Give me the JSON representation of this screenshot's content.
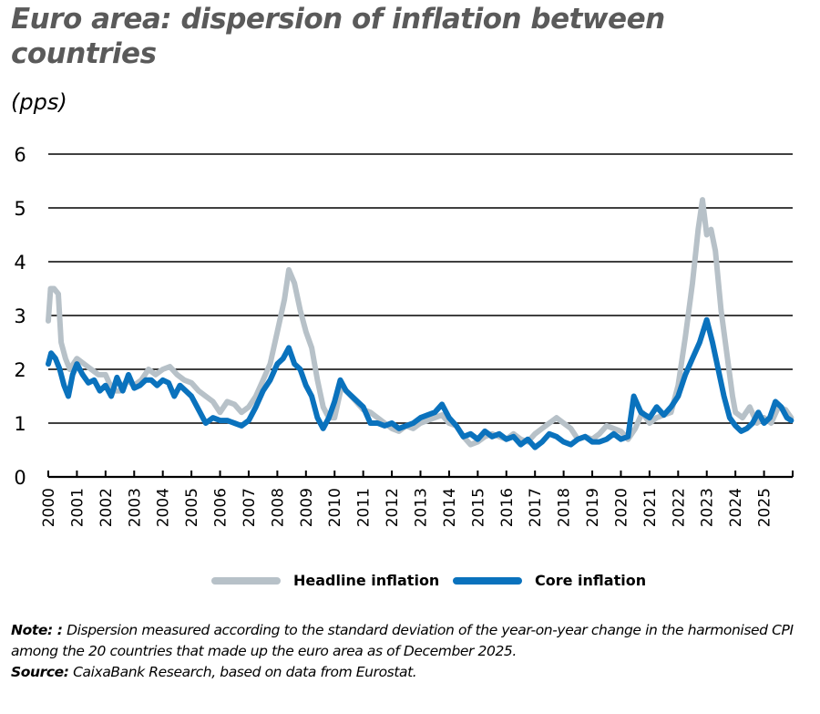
{
  "title": "Euro area: dispersion of inflation between countries",
  "unit": "(pps)",
  "legend": {
    "headline_label": "Headline inflation",
    "core_label": "Core inflation"
  },
  "notes": {
    "note_label": "Note: :",
    "note_text": " Dispersion measured according to the standard deviation of the year-on-year change in the harmonised CPI among the 20 countries that made up the euro area as of December 2025.",
    "source_label": "Source:",
    "source_text": " CaixaBank Research, based on data from Eurostat."
  },
  "colors": {
    "headline": "#b7c1c8",
    "core": "#0a72bd",
    "grid": "#000000",
    "title": "#5a5a5a"
  },
  "chart_data": {
    "type": "line",
    "title": "Euro area: dispersion of inflation between countries",
    "xlabel": "",
    "ylabel": "(pps)",
    "ylim": [
      0,
      6
    ],
    "yticks": [
      0,
      1,
      2,
      3,
      4,
      5,
      6
    ],
    "xlim": [
      2000,
      2026
    ],
    "xticks": [
      "2000",
      "2001",
      "2002",
      "2003",
      "2004",
      "2005",
      "2006",
      "2007",
      "2008",
      "2009",
      "2010",
      "2011",
      "2012",
      "2013",
      "2014",
      "2015",
      "2016",
      "2017",
      "2018",
      "2019",
      "2020",
      "2021",
      "2022",
      "2023",
      "2024",
      "2025"
    ],
    "grid": true,
    "legend_position": "bottom",
    "series": [
      {
        "name": "Headline inflation",
        "x": [
          2000.0,
          2000.08,
          2000.2,
          2000.35,
          2000.45,
          2000.6,
          2000.75,
          2001.0,
          2001.25,
          2001.5,
          2001.75,
          2002.0,
          2002.25,
          2002.5,
          2002.75,
          2003.0,
          2003.25,
          2003.5,
          2003.75,
          2004.0,
          2004.25,
          2004.5,
          2004.75,
          2005.0,
          2005.25,
          2005.5,
          2005.75,
          2006.0,
          2006.25,
          2006.5,
          2006.75,
          2007.0,
          2007.25,
          2007.5,
          2007.75,
          2008.0,
          2008.25,
          2008.4,
          2008.6,
          2008.8,
          2009.0,
          2009.2,
          2009.4,
          2009.6,
          2009.8,
          2010.0,
          2010.25,
          2010.5,
          2010.75,
          2011.0,
          2011.25,
          2011.5,
          2011.75,
          2012.0,
          2012.25,
          2012.5,
          2012.75,
          2013.0,
          2013.25,
          2013.5,
          2013.75,
          2014.0,
          2014.25,
          2014.5,
          2014.75,
          2015.0,
          2015.25,
          2015.5,
          2015.75,
          2016.0,
          2016.25,
          2016.5,
          2016.75,
          2017.0,
          2017.25,
          2017.5,
          2017.75,
          2018.0,
          2018.25,
          2018.5,
          2018.75,
          2019.0,
          2019.25,
          2019.5,
          2019.75,
          2020.0,
          2020.25,
          2020.5,
          2020.75,
          2021.0,
          2021.25,
          2021.5,
          2021.75,
          2022.0,
          2022.25,
          2022.5,
          2022.7,
          2022.85,
          2023.0,
          2023.15,
          2023.3,
          2023.5,
          2023.7,
          2023.9,
          2024.0,
          2024.25,
          2024.5,
          2024.75,
          2025.0,
          2025.25,
          2025.5,
          2025.75,
          2025.95
        ],
        "values": [
          2.9,
          3.5,
          3.5,
          3.4,
          2.5,
          2.2,
          2.0,
          2.2,
          2.1,
          2.0,
          1.9,
          1.9,
          1.6,
          1.6,
          1.8,
          1.7,
          1.8,
          2.0,
          1.9,
          2.0,
          2.05,
          1.9,
          1.8,
          1.75,
          1.6,
          1.5,
          1.4,
          1.2,
          1.4,
          1.35,
          1.2,
          1.3,
          1.5,
          1.8,
          2.1,
          2.7,
          3.3,
          3.85,
          3.6,
          3.1,
          2.7,
          2.4,
          1.8,
          1.3,
          1.1,
          1.1,
          1.7,
          1.55,
          1.4,
          1.25,
          1.2,
          1.1,
          1.0,
          0.9,
          0.85,
          0.95,
          0.9,
          1.0,
          1.05,
          1.1,
          1.15,
          1.0,
          0.95,
          0.75,
          0.6,
          0.65,
          0.75,
          0.8,
          0.75,
          0.7,
          0.8,
          0.7,
          0.65,
          0.8,
          0.9,
          1.0,
          1.1,
          1.0,
          0.9,
          0.7,
          0.75,
          0.7,
          0.8,
          0.95,
          0.9,
          0.85,
          0.7,
          0.9,
          1.2,
          1.0,
          1.1,
          1.15,
          1.2,
          1.7,
          2.6,
          3.6,
          4.6,
          5.15,
          4.5,
          4.6,
          4.2,
          3.1,
          2.3,
          1.5,
          1.2,
          1.1,
          1.3,
          1.0,
          1.1,
          1.0,
          1.3,
          1.25,
          1.1
        ]
      },
      {
        "name": "Core inflation",
        "x": [
          2000.0,
          2000.1,
          2000.25,
          2000.4,
          2000.55,
          2000.7,
          2000.85,
          2001.0,
          2001.2,
          2001.4,
          2001.6,
          2001.8,
          2002.0,
          2002.2,
          2002.4,
          2002.6,
          2002.8,
          2003.0,
          2003.2,
          2003.4,
          2003.6,
          2003.8,
          2004.0,
          2004.2,
          2004.4,
          2004.6,
          2004.8,
          2005.0,
          2005.25,
          2005.5,
          2005.75,
          2006.0,
          2006.25,
          2006.5,
          2006.75,
          2007.0,
          2007.25,
          2007.5,
          2007.75,
          2008.0,
          2008.2,
          2008.4,
          2008.6,
          2008.8,
          2009.0,
          2009.2,
          2009.4,
          2009.6,
          2009.8,
          2010.0,
          2010.2,
          2010.4,
          2010.6,
          2010.8,
          2011.0,
          2011.25,
          2011.5,
          2011.75,
          2012.0,
          2012.25,
          2012.5,
          2012.75,
          2013.0,
          2013.25,
          2013.5,
          2013.75,
          2014.0,
          2014.25,
          2014.5,
          2014.75,
          2015.0,
          2015.25,
          2015.5,
          2015.75,
          2016.0,
          2016.25,
          2016.5,
          2016.75,
          2017.0,
          2017.25,
          2017.5,
          2017.75,
          2018.0,
          2018.25,
          2018.5,
          2018.75,
          2019.0,
          2019.25,
          2019.5,
          2019.75,
          2020.0,
          2020.25,
          2020.45,
          2020.7,
          2021.0,
          2021.25,
          2021.5,
          2021.75,
          2022.0,
          2022.25,
          2022.5,
          2022.75,
          2023.0,
          2023.2,
          2023.4,
          2023.6,
          2023.8,
          2024.0,
          2024.2,
          2024.4,
          2024.6,
          2024.8,
          2025.0,
          2025.2,
          2025.4,
          2025.6,
          2025.8,
          2025.95
        ],
        "values": [
          2.1,
          2.3,
          2.2,
          2.0,
          1.7,
          1.5,
          1.9,
          2.1,
          1.9,
          1.75,
          1.8,
          1.6,
          1.7,
          1.5,
          1.85,
          1.6,
          1.9,
          1.65,
          1.7,
          1.8,
          1.8,
          1.7,
          1.8,
          1.75,
          1.5,
          1.7,
          1.6,
          1.5,
          1.25,
          1.0,
          1.1,
          1.05,
          1.05,
          1.0,
          0.95,
          1.05,
          1.3,
          1.6,
          1.8,
          2.1,
          2.2,
          2.4,
          2.1,
          2.0,
          1.7,
          1.5,
          1.1,
          0.9,
          1.1,
          1.4,
          1.8,
          1.6,
          1.5,
          1.4,
          1.3,
          1.0,
          1.0,
          0.95,
          1.0,
          0.9,
          0.95,
          1.0,
          1.1,
          1.15,
          1.2,
          1.35,
          1.1,
          0.95,
          0.75,
          0.8,
          0.7,
          0.85,
          0.75,
          0.8,
          0.7,
          0.75,
          0.6,
          0.7,
          0.55,
          0.65,
          0.8,
          0.75,
          0.65,
          0.6,
          0.7,
          0.75,
          0.65,
          0.65,
          0.7,
          0.8,
          0.7,
          0.75,
          1.5,
          1.2,
          1.1,
          1.3,
          1.15,
          1.3,
          1.5,
          1.9,
          2.2,
          2.5,
          2.92,
          2.5,
          2.0,
          1.5,
          1.1,
          0.95,
          0.85,
          0.9,
          1.0,
          1.2,
          1.0,
          1.1,
          1.4,
          1.3,
          1.1,
          1.05
        ]
      }
    ]
  }
}
